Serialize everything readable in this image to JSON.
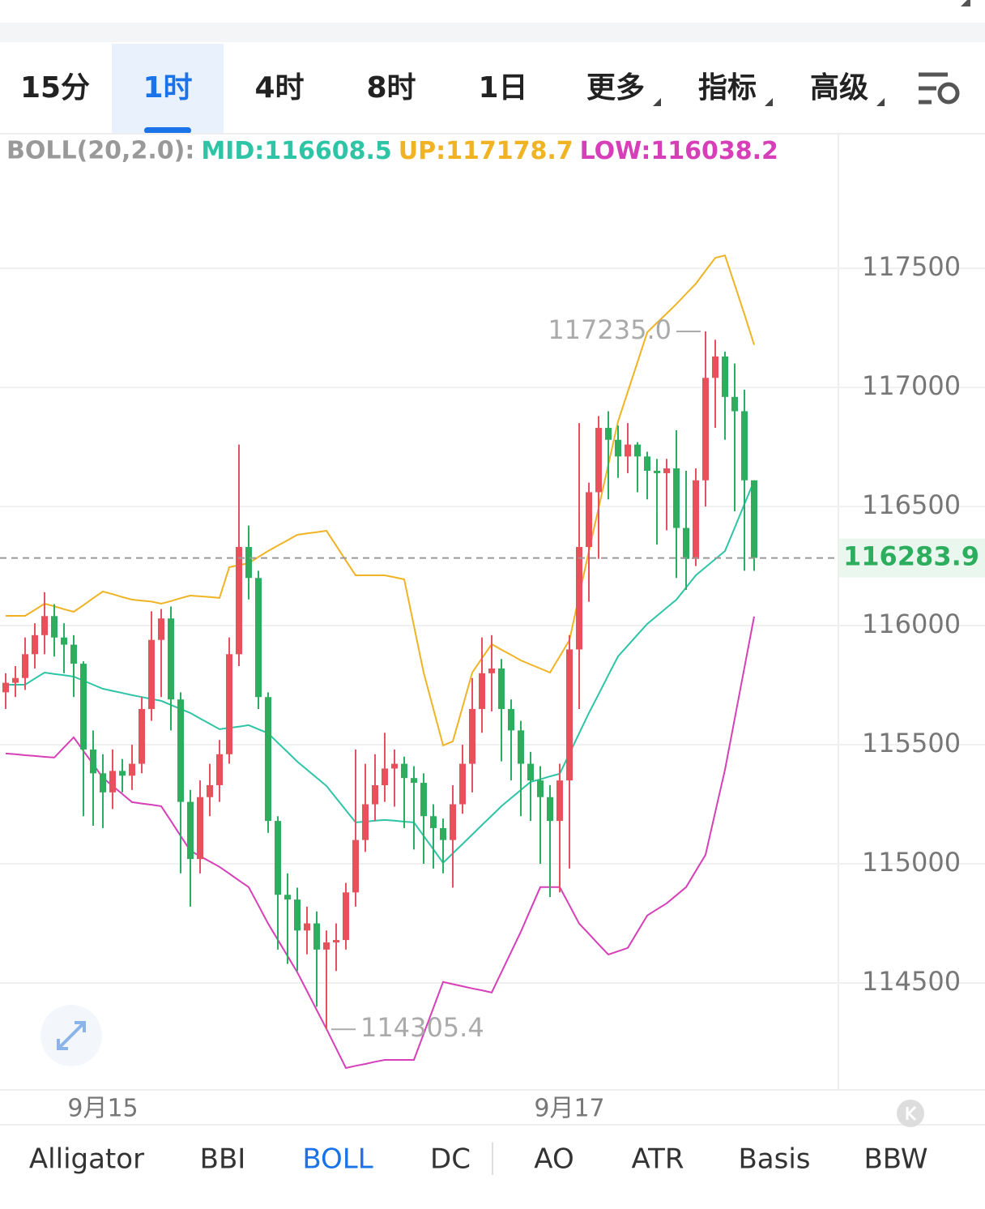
{
  "toolbar": {
    "tabs": [
      "15分",
      "1时",
      "4时",
      "8时",
      "1日",
      "更多",
      "指标",
      "高级"
    ],
    "selected": 1
  },
  "indicator_bar": {
    "tabs": [
      "Alligator",
      "BBI",
      "BOLL",
      "DC",
      "AO",
      "ATR",
      "Basis",
      "BBW"
    ],
    "selected": 2
  },
  "chart_data": {
    "type": "candlestick",
    "indicator_label": "BOLL(20,2.0):",
    "categories": [
      null,
      null,
      null,
      null,
      null,
      null,
      null,
      null,
      null,
      null,
      "9月15",
      null,
      null,
      null,
      null,
      null,
      null,
      null,
      null,
      null,
      null,
      null,
      null,
      null,
      null,
      null,
      null,
      null,
      null,
      null,
      null,
      null,
      null,
      null,
      null,
      null,
      null,
      null,
      null,
      null,
      null,
      null,
      null,
      null,
      null,
      null,
      null,
      null,
      null,
      null,
      null,
      null,
      null,
      null,
      null,
      null,
      null,
      null,
      "9月17",
      null,
      null,
      null,
      null,
      null,
      null,
      null,
      null,
      null,
      null,
      null,
      null,
      null,
      null,
      null,
      null,
      null,
      null,
      null
    ],
    "open": [
      115720,
      115760,
      115780,
      115880,
      115960,
      116040,
      115950,
      115920,
      115840,
      115480,
      115380,
      115300,
      115390,
      115370,
      115420,
      115650,
      115940,
      116030,
      115690,
      115260,
      115020,
      115280,
      115330,
      115460,
      115880,
      116330,
      116200,
      115700,
      115180,
      114870,
      114850,
      114720,
      114750,
      114640,
      114670,
      114680,
      114880,
      115100,
      115250,
      115330,
      115400,
      115420,
      115360,
      115340,
      115200,
      115150,
      115100,
      115250,
      115420,
      115650,
      115800,
      115820,
      115650,
      115560,
      115420,
      115350,
      115280,
      115180,
      115350,
      115900,
      116330,
      116560,
      116830,
      116780,
      116710,
      116760,
      116710,
      116650,
      116640,
      116660,
      116410,
      116280,
      116610,
      117040,
      117130,
      116960,
      116900,
      116610
    ],
    "high": [
      115800,
      115830,
      115950,
      116010,
      116140,
      116090,
      116010,
      115960,
      115850,
      115560,
      115460,
      115480,
      115440,
      115500,
      115700,
      116060,
      116070,
      116080,
      115720,
      115310,
      115350,
      115420,
      115520,
      115950,
      116760,
      116420,
      116230,
      115720,
      115200,
      114960,
      114900,
      114820,
      114800,
      114720,
      114750,
      114920,
      115480,
      115420,
      115460,
      115550,
      115480,
      115450,
      115410,
      115380,
      115250,
      115190,
      115330,
      115500,
      115780,
      115950,
      115960,
      115860,
      115690,
      115600,
      115470,
      115410,
      115330,
      115420,
      115960,
      116850,
      116600,
      116880,
      116900,
      116840,
      116850,
      116770,
      116730,
      116700,
      116700,
      116820,
      116650,
      116660,
      117235,
      117200,
      117150,
      117100,
      116990,
      116610
    ],
    "low": [
      115650,
      115700,
      115730,
      115820,
      115880,
      115870,
      115800,
      115700,
      115200,
      115160,
      115150,
      115230,
      115300,
      115310,
      115380,
      115600,
      115700,
      115560,
      114960,
      114820,
      114960,
      115200,
      115260,
      115420,
      115830,
      116110,
      115650,
      115130,
      114640,
      114580,
      114550,
      114620,
      114400,
      114305.4,
      114550,
      114640,
      114820,
      115050,
      115180,
      115260,
      115240,
      115150,
      115060,
      115000,
      114980,
      114960,
      114900,
      115210,
      115300,
      115550,
      115640,
      115430,
      115350,
      115200,
      115180,
      115000,
      114860,
      114880,
      114980,
      115650,
      116100,
      116280,
      116530,
      116620,
      116640,
      116560,
      116530,
      116340,
      116400,
      116200,
      116150,
      116250,
      116500,
      116830,
      116780,
      116480,
      116230,
      116230
    ],
    "close": [
      115760,
      115780,
      115880,
      115960,
      116040,
      115950,
      115920,
      115840,
      115480,
      115380,
      115300,
      115390,
      115370,
      115420,
      115650,
      115940,
      116030,
      115690,
      115260,
      115020,
      115280,
      115330,
      115460,
      115880,
      116330,
      116200,
      115700,
      115180,
      114870,
      114850,
      114720,
      114750,
      114640,
      114670,
      114680,
      114880,
      115100,
      115250,
      115330,
      115400,
      115420,
      115360,
      115340,
      115200,
      115150,
      115100,
      115250,
      115420,
      115650,
      115800,
      115820,
      115650,
      115560,
      115420,
      115350,
      115280,
      115180,
      115350,
      115900,
      116330,
      116560,
      116830,
      116780,
      116710,
      116760,
      116710,
      116650,
      116640,
      116660,
      116410,
      116280,
      116610,
      117040,
      117130,
      116960,
      116900,
      116610,
      116283.9
    ],
    "up_color": "#e8505b",
    "down_color": "#2dae5f",
    "series": [
      {
        "name": "MID",
        "color": "#2ec4a6",
        "values": [
          115752,
          115752,
          115752,
          115778,
          115803,
          115797,
          115792,
          115786,
          115769,
          115752,
          115735,
          115726,
          115717,
          115708,
          115700,
          115692,
          115684,
          115667,
          115650,
          115633,
          115610,
          115588,
          115565,
          115571,
          115576,
          115582,
          115565,
          115548,
          115508,
          115469,
          115429,
          115395,
          115361,
          115327,
          115276,
          115225,
          115174,
          115177,
          115181,
          115184,
          115181,
          115177,
          115174,
          115117,
          115061,
          115004,
          115044,
          115083,
          115123,
          115163,
          115202,
          115242,
          115276,
          115310,
          115344,
          115355,
          115367,
          115378,
          115463,
          115548,
          115633,
          115712,
          115792,
          115871,
          115916,
          115962,
          116007,
          116041,
          116075,
          116109,
          116160,
          116211,
          116245,
          116279,
          116313,
          116411,
          116510,
          116608.5
        ]
      },
      {
        "name": "UP",
        "color": "#f0b323",
        "values": [
          116041,
          116041,
          116041,
          116066,
          116092,
          116081,
          116069,
          116058,
          116086,
          116115,
          116143,
          116132,
          116120,
          116109,
          116105,
          116101,
          116092,
          116103,
          116115,
          116126,
          116123,
          116120,
          116116,
          116245,
          116254,
          116262,
          116288,
          116313,
          116336,
          116358,
          116381,
          116387,
          116392,
          116398,
          116336,
          116273,
          116211,
          116211,
          116211,
          116211,
          116203,
          116194,
          115999,
          115803,
          115650,
          115497,
          115514,
          115658,
          115803,
          115863,
          115922,
          115899,
          115877,
          115854,
          115837,
          115820,
          115803,
          115871,
          115939,
          116126,
          116313,
          116494,
          116676,
          116857,
          116982,
          117106,
          117231,
          117271,
          117310,
          117350,
          117393,
          117435,
          117490,
          117544,
          117554,
          117431,
          117307,
          117178.7
        ]
      },
      {
        "name": "LOW",
        "color": "#d63fb8",
        "values": [
          115463,
          115460,
          115456,
          115453,
          115449,
          115446,
          115489,
          115531,
          115474,
          115418,
          115361,
          115327,
          115293,
          115259,
          115253,
          115248,
          115242,
          115180,
          115117,
          115055,
          115032,
          115010,
          114987,
          114959,
          114930,
          114902,
          114826,
          114749,
          114681,
          114613,
          114545,
          114466,
          114386,
          114307,
          114225,
          114143,
          114152,
          114160,
          114169,
          114177,
          114177,
          114177,
          114177,
          114286,
          114395,
          114504,
          114495,
          114486,
          114477,
          114469,
          114460,
          114545,
          114630,
          114715,
          114809,
          114902,
          114902,
          114902,
          114826,
          114749,
          114706,
          114662,
          114619,
          114633,
          114647,
          114715,
          114783,
          114809,
          114834,
          114868,
          114902,
          114970,
          115038,
          115217,
          115395,
          115609,
          115824,
          116038.2
        ]
      }
    ],
    "ylim": [
      114051,
      118065
    ],
    "yticks": [
      114500,
      115000,
      115500,
      116000,
      116500,
      117000,
      117500
    ],
    "grid": true,
    "last_price": 116283.9,
    "annotations": [
      {
        "value": 117235,
        "label": "117235.0",
        "index": 72
      },
      {
        "value": 114305.4,
        "label": "114305.4",
        "index": 33
      }
    ]
  }
}
